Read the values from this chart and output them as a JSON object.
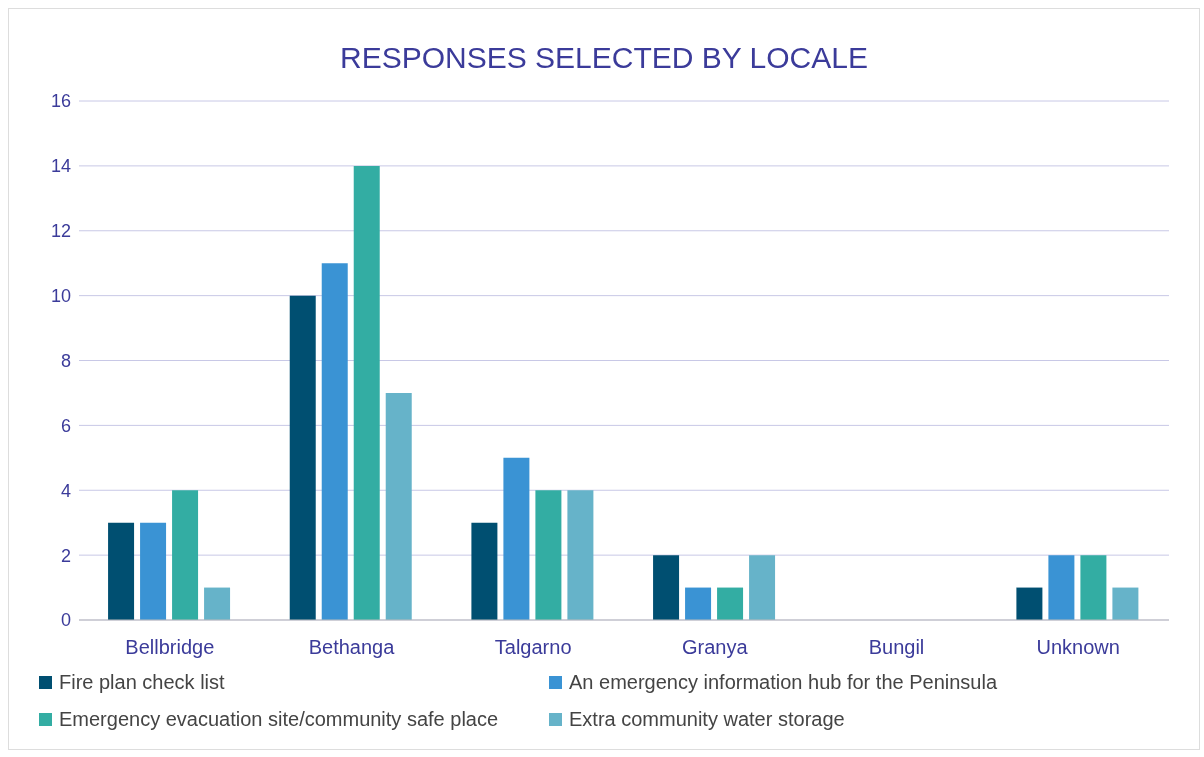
{
  "chart_data": {
    "type": "bar",
    "title": "RESPONSES SELECTED BY LOCALE",
    "categories": [
      "Bellbridge",
      "Bethanga",
      "Talgarno",
      "Granya",
      "Bungil",
      "Unknown"
    ],
    "series": [
      {
        "name": "Fire plan check list",
        "color": "#004f71",
        "values": [
          3,
          10,
          3,
          2,
          0,
          1
        ]
      },
      {
        "name": "An emergency information hub for the Peninsula",
        "color": "#3a93d4",
        "values": [
          3,
          11,
          5,
          1,
          0,
          2
        ]
      },
      {
        "name": "Emergency evacuation site/community safe place",
        "color": "#33ada3",
        "values": [
          4,
          14,
          4,
          1,
          0,
          2
        ]
      },
      {
        "name": "Extra community water storage",
        "color": "#66b3c9",
        "values": [
          1,
          7,
          4,
          2,
          0,
          1
        ]
      }
    ],
    "ylim": [
      0,
      16
    ],
    "yticks": [
      0,
      2,
      4,
      6,
      8,
      10,
      12,
      14,
      16
    ],
    "grid": "y",
    "legend": "bottom"
  }
}
